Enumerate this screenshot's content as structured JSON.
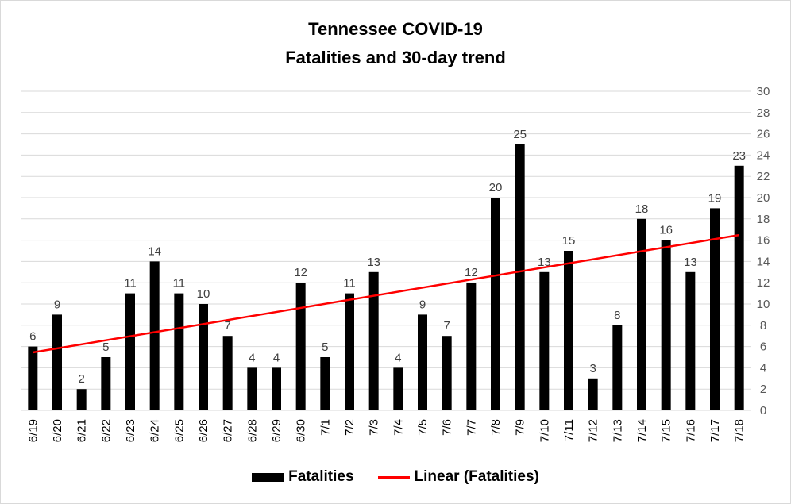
{
  "chart_data": {
    "type": "bar",
    "title": "Tennessee COVID-19",
    "subtitle": "Fatalities and 30-day trend",
    "categories": [
      "6/19",
      "6/20",
      "6/21",
      "6/22",
      "6/23",
      "6/24",
      "6/25",
      "6/26",
      "6/27",
      "6/28",
      "6/29",
      "6/30",
      "7/1",
      "7/2",
      "7/3",
      "7/4",
      "7/5",
      "7/6",
      "7/7",
      "7/8",
      "7/9",
      "7/10",
      "7/11",
      "7/12",
      "7/13",
      "7/14",
      "7/15",
      "7/16",
      "7/17",
      "7/18"
    ],
    "series": [
      {
        "name": "Fatalities",
        "values": [
          6,
          9,
          2,
          5,
          11,
          14,
          11,
          10,
          7,
          4,
          4,
          12,
          5,
          11,
          13,
          4,
          9,
          7,
          12,
          20,
          25,
          13,
          15,
          3,
          8,
          18,
          16,
          13,
          19,
          23
        ],
        "color": "#000000"
      }
    ],
    "trendline": {
      "name": "Linear (Fatalities)",
      "type": "linear",
      "color": "#ff0000"
    },
    "y_axis": {
      "position": "right",
      "range": [
        0,
        30
      ],
      "ticks": [
        "0",
        "2",
        "4",
        "6",
        "8",
        "10",
        "12",
        "14",
        "16",
        "18",
        "20",
        "22",
        "24",
        "26",
        "28",
        "30"
      ]
    },
    "grid": true,
    "legend": "bottom",
    "data_labels": true
  }
}
